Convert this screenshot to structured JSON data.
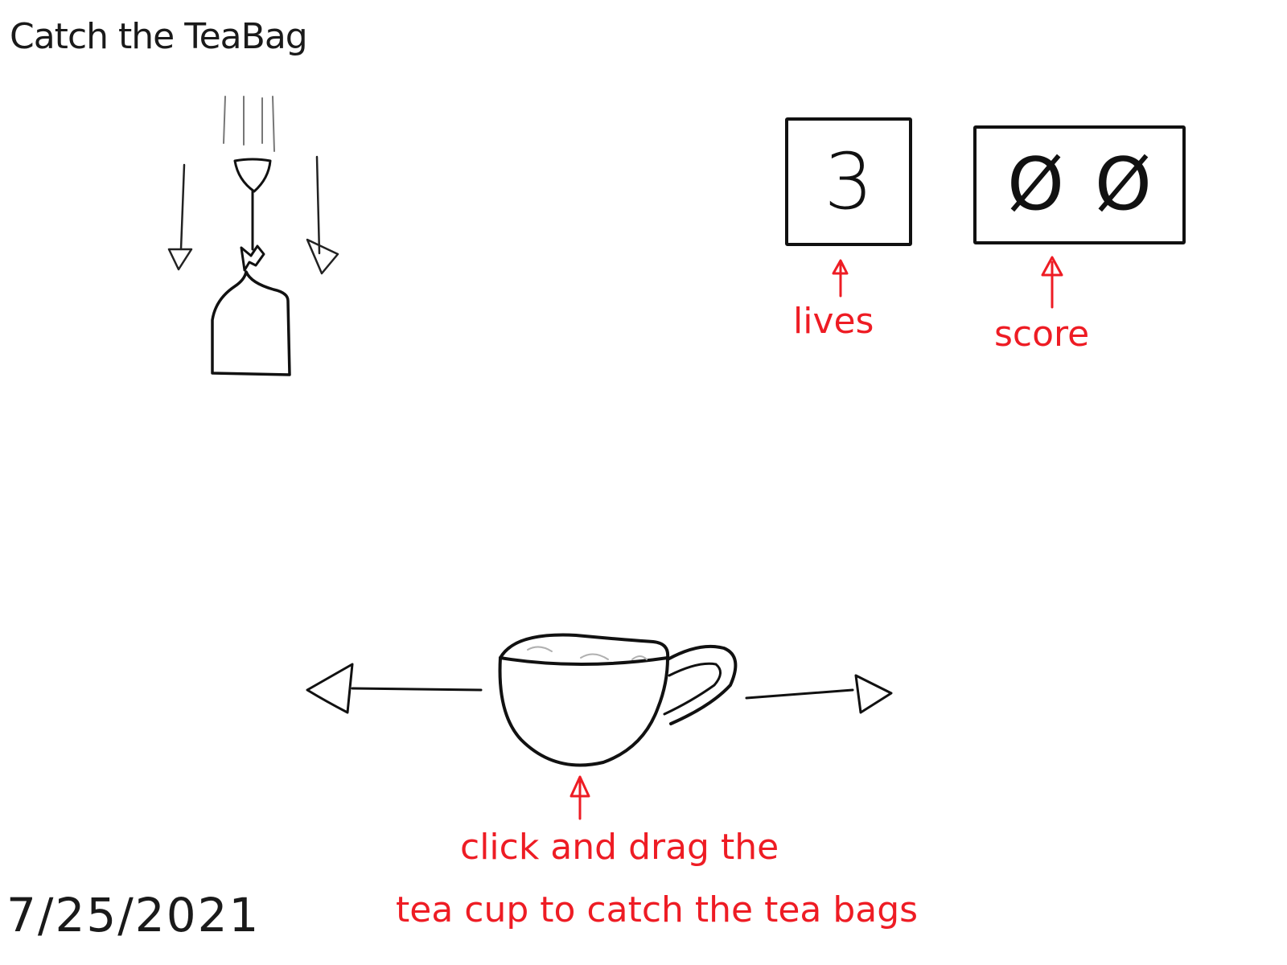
{
  "title": "Catch the TeaBag",
  "hud": {
    "lives": {
      "value": "3",
      "label": "lives"
    },
    "score": {
      "digits": [
        "Ø",
        "Ø"
      ],
      "label": "score"
    }
  },
  "instructions": {
    "line1": "click and drag the",
    "line2": "tea cup to catch the tea bags"
  },
  "date": "7/25/2021",
  "colors": {
    "ink": "#111111",
    "annotation": "#ee1c24",
    "tea": "#b0b0b0"
  },
  "icons": {
    "teabag": "teabag-icon",
    "teacup": "teacup-icon"
  }
}
